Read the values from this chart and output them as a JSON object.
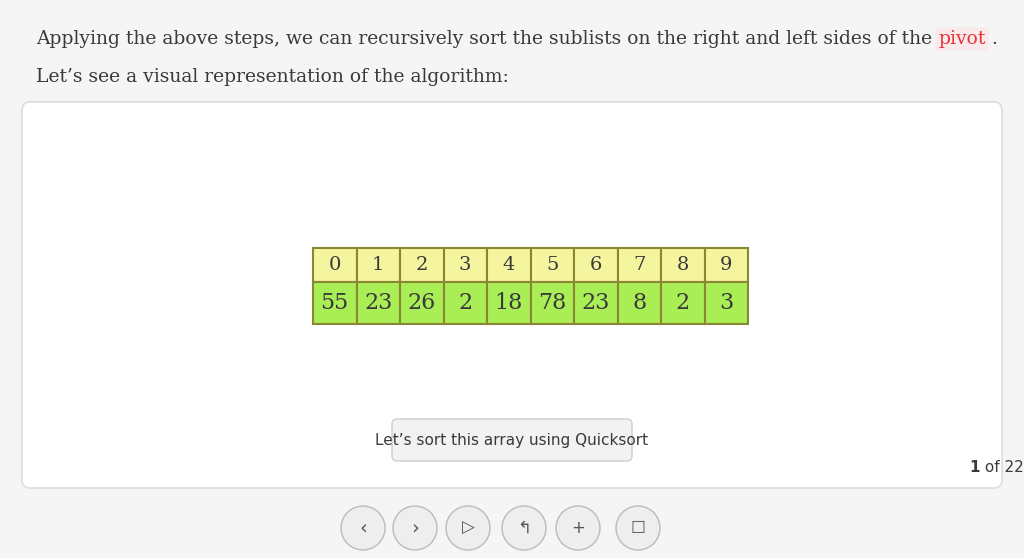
{
  "title_part1": "Applying the above steps, we can recursively sort the sublists on the right and left sides of the ",
  "title_pivot": "pivot",
  "title_period": " .",
  "subtitle": "Let’s see a visual representation of the algorithm:",
  "indices": [
    0,
    1,
    2,
    3,
    4,
    5,
    6,
    7,
    8,
    9
  ],
  "values": [
    55,
    23,
    26,
    2,
    18,
    78,
    23,
    8,
    2,
    3
  ],
  "index_bg": "#f5f5a0",
  "value_bg": "#aaee55",
  "cell_border": "#888833",
  "caption_text": "Let’s sort this array using Quicksort",
  "caption_bg": "#f2f2f2",
  "caption_border": "#cccccc",
  "page_text": "1 of 22",
  "panel_bg": "#ffffff",
  "panel_border": "#d8d8d8",
  "page_bg": "#f5f5f5",
  "nav_bg": "#eeeeee",
  "nav_border": "#bbbbbb",
  "text_color": "#3a3a3a",
  "pivot_color": "#e8333a",
  "pivot_bg": "#fce8ea"
}
